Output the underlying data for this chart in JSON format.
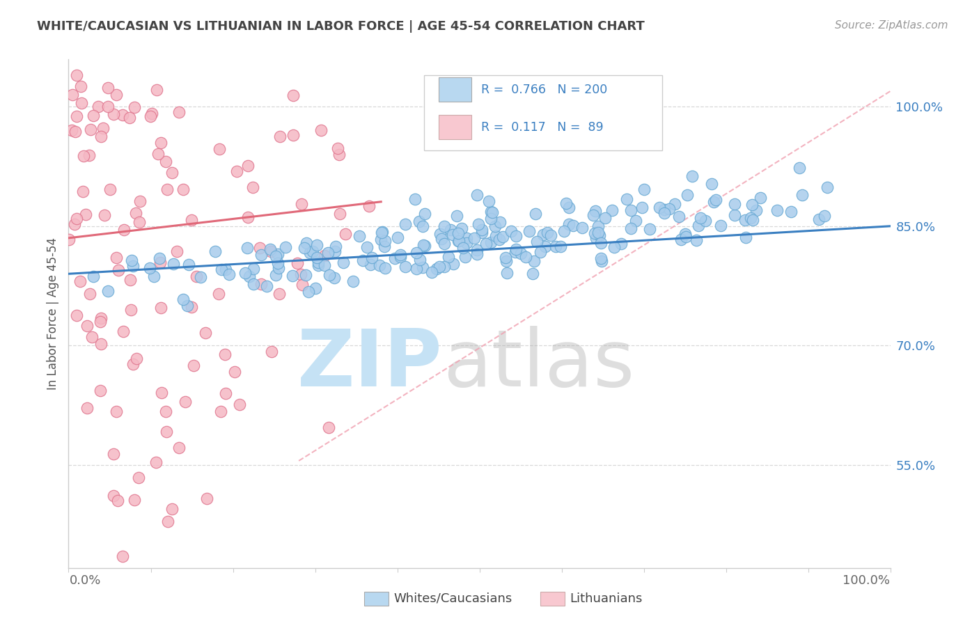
{
  "title": "WHITE/CAUCASIAN VS LITHUANIAN IN LABOR FORCE | AGE 45-54 CORRELATION CHART",
  "source": "Source: ZipAtlas.com",
  "ylabel": "In Labor Force | Age 45-54",
  "legend_label1": "Whites/Caucasians",
  "legend_label2": "Lithuanians",
  "R1": 0.766,
  "N1": 200,
  "R2": 0.117,
  "N2": 89,
  "blue_scatter_color": "#a8ccec",
  "blue_scatter_edge": "#6aaad4",
  "blue_line_color": "#3a7fc1",
  "pink_scatter_color": "#f5b8c4",
  "pink_scatter_edge": "#e07890",
  "pink_line_color": "#e06878",
  "pink_dash_color": "#f0a0b0",
  "legend_box_blue": "#b8d8f0",
  "legend_box_pink": "#f8c8d0",
  "value_color": "#3a7fc1",
  "xmin": 0.0,
  "xmax": 1.0,
  "ymin": 0.42,
  "ymax": 1.06,
  "ytick_values": [
    0.55,
    0.7,
    0.85,
    1.0
  ],
  "grid_color": "#d8d8d8",
  "background_color": "#ffffff",
  "title_color": "#444444",
  "source_color": "#999999"
}
